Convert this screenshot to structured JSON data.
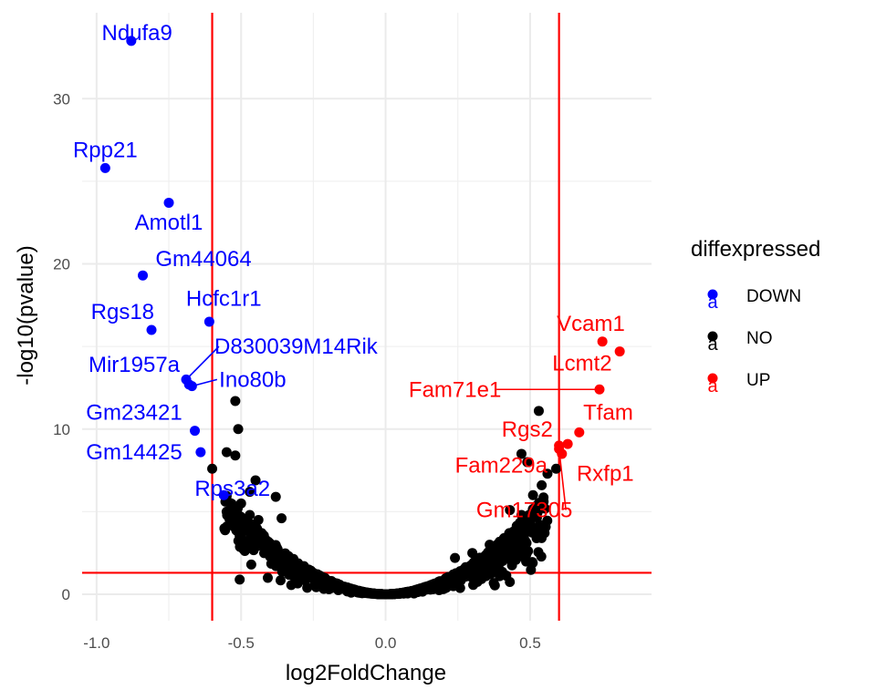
{
  "chart_data": {
    "type": "scatter",
    "title": "",
    "xlabel": "log2FoldChange",
    "ylabel": "-log10(pvalue)",
    "xlim": [
      -1.05,
      0.92
    ],
    "ylim": [
      -1.6,
      35.2
    ],
    "x_ticks": [
      -1.0,
      -0.5,
      0.0,
      0.5
    ],
    "x_tick_labels": [
      "-1.0",
      "-0.5",
      "0.0",
      "0.5"
    ],
    "y_ticks": [
      0,
      10,
      20,
      30
    ],
    "y_tick_labels": [
      "0",
      "10",
      "20",
      "30"
    ],
    "grid": true,
    "thresholds": {
      "fc_low": -0.6,
      "fc_high": 0.6,
      "pvalue_line": 1.3
    },
    "legend": {
      "title": "diffexpressed",
      "position": "right",
      "key_glyph": "a",
      "entries": [
        {
          "label": "DOWN",
          "color": "#0000ff"
        },
        {
          "label": "NO",
          "color": "#000000"
        },
        {
          "label": "UP",
          "color": "#ff0000"
        }
      ]
    },
    "colors": {
      "DOWN": "#0000ff",
      "NO": "#000000",
      "UP": "#ff0000",
      "threshold": "#ff0000"
    },
    "labeled_points": [
      {
        "gene": "Ndufa9",
        "x": -0.88,
        "y": 33.5,
        "group": "DOWN",
        "lx": -0.86,
        "ly": 34.0
      },
      {
        "gene": "Rpp21",
        "x": -0.97,
        "y": 25.8,
        "group": "DOWN",
        "lx": -0.97,
        "ly": 26.9
      },
      {
        "gene": "Amotl1",
        "x": -0.75,
        "y": 23.7,
        "group": "DOWN",
        "lx": -0.75,
        "ly": 22.5
      },
      {
        "gene": "Gm44064",
        "x": -0.84,
        "y": 19.3,
        "group": "DOWN",
        "lx": -0.63,
        "ly": 20.3
      },
      {
        "gene": "Rgs18",
        "x": -0.81,
        "y": 16.0,
        "group": "DOWN",
        "lx": -0.91,
        "ly": 17.1
      },
      {
        "gene": "Hcfc1r1",
        "x": -0.61,
        "y": 16.5,
        "group": "DOWN",
        "lx": -0.56,
        "ly": 17.9
      },
      {
        "gene": "D830039M14Rik",
        "x": -0.69,
        "y": 13.0,
        "group": "DOWN",
        "lx": -0.31,
        "ly": 15.0,
        "segment": true
      },
      {
        "gene": "Mir1957a",
        "x": -0.68,
        "y": 12.7,
        "group": "DOWN",
        "lx": -0.87,
        "ly": 13.9
      },
      {
        "gene": "Ino80b",
        "x": -0.67,
        "y": 12.6,
        "group": "DOWN",
        "lx": -0.46,
        "ly": 13.0,
        "segment": true
      },
      {
        "gene": "Gm23421",
        "x": -0.66,
        "y": 9.9,
        "group": "DOWN",
        "lx": -0.87,
        "ly": 11.0
      },
      {
        "gene": "Gm14425",
        "x": -0.64,
        "y": 8.6,
        "group": "DOWN",
        "lx": -0.87,
        "ly": 8.6
      },
      {
        "gene": "Rps3a2",
        "x": -0.56,
        "y": 6.0,
        "group": "DOWN",
        "lx": -0.53,
        "ly": 6.4
      },
      {
        "gene": "Vcam1",
        "x": 0.75,
        "y": 15.3,
        "group": "UP",
        "lx": 0.71,
        "ly": 16.4
      },
      {
        "gene": "Lcmt2",
        "x": 0.81,
        "y": 14.7,
        "group": "UP",
        "lx": 0.68,
        "ly": 14.0
      },
      {
        "gene": "Fam71e1",
        "x": 0.74,
        "y": 12.4,
        "group": "UP",
        "lx": 0.24,
        "ly": 12.4,
        "segment": true
      },
      {
        "gene": "Tfam",
        "x": 0.67,
        "y": 9.8,
        "group": "UP",
        "lx": 0.77,
        "ly": 11.0
      },
      {
        "gene": "Rgs2",
        "x": 0.63,
        "y": 9.1,
        "group": "UP",
        "lx": 0.49,
        "ly": 10.0
      },
      {
        "gene": "Fam229a",
        "x": 0.61,
        "y": 8.5,
        "group": "UP",
        "lx": 0.4,
        "ly": 7.8
      },
      {
        "gene": "Rxfp1",
        "x": 0.6,
        "y": 9.0,
        "group": "UP",
        "lx": 0.76,
        "ly": 7.3
      },
      {
        "gene": "Gm17305",
        "x": 0.6,
        "y": 8.8,
        "group": "UP",
        "lx": 0.48,
        "ly": 5.1,
        "segment": true
      }
    ],
    "extra_points": [
      {
        "x": -0.52,
        "y": 11.7
      },
      {
        "x": -0.51,
        "y": 10.0
      },
      {
        "x": -0.6,
        "y": 7.6
      },
      {
        "x": -0.55,
        "y": 8.6
      },
      {
        "x": -0.52,
        "y": 8.4
      },
      {
        "x": -0.45,
        "y": 6.9
      },
      {
        "x": -0.38,
        "y": 5.9
      },
      {
        "x": -0.47,
        "y": 6.2
      },
      {
        "x": -0.5,
        "y": 5.5
      },
      {
        "x": -0.55,
        "y": 5.0
      },
      {
        "x": -0.47,
        "y": 4.8
      },
      {
        "x": -0.5,
        "y": 4.2
      },
      {
        "x": -0.44,
        "y": 4.5
      },
      {
        "x": -0.36,
        "y": 4.6
      },
      {
        "x": 0.53,
        "y": 11.1
      },
      {
        "x": 0.47,
        "y": 8.5
      },
      {
        "x": 0.59,
        "y": 7.6
      },
      {
        "x": 0.49,
        "y": 8.0
      },
      {
        "x": 0.56,
        "y": 7.3
      },
      {
        "x": 0.54,
        "y": 6.6
      },
      {
        "x": 0.51,
        "y": 6.0
      },
      {
        "x": 0.43,
        "y": 5.1
      },
      {
        "x": 0.47,
        "y": 4.8
      },
      {
        "x": 0.46,
        "y": 4.1
      },
      {
        "x": 0.41,
        "y": 3.4
      },
      {
        "x": 0.36,
        "y": 3.0
      },
      {
        "x": 0.3,
        "y": 2.5
      },
      {
        "x": 0.24,
        "y": 2.2
      }
    ]
  }
}
